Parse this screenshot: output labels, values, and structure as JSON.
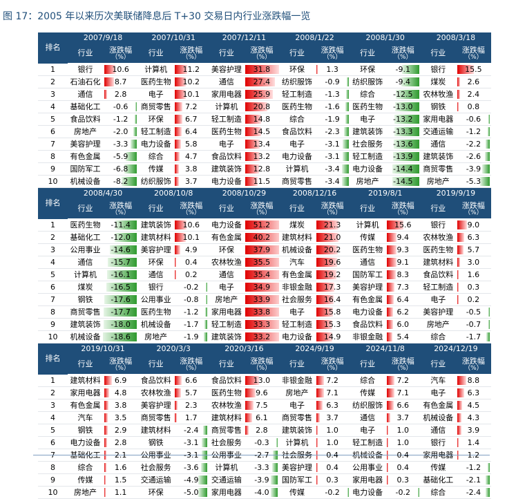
{
  "title": "图 17：2005 年以来历次美联储降息后 T+30 交易日内行业涨跌幅一览",
  "headers": {
    "rank": "排名",
    "industry": "行业",
    "change_top": "涨跌幅",
    "change_bottom": "（%）"
  },
  "colors": {
    "header_bg": "#1f4e79",
    "positive_bar": "#e00000",
    "negative_bar": "#2f9a2f"
  },
  "blocks": [
    {
      "dates": [
        "2007/9/18",
        "2007/10/31",
        "2007/12/11",
        "2008/1/22",
        "2008/1/30",
        "2008/3/18"
      ],
      "rows": [
        {
          "rank": "1",
          "cells": [
            [
              "银行",
              "10.6"
            ],
            [
              "计算机",
              "11.2"
            ],
            [
              "美容护理",
              "31.8"
            ],
            [
              "环保",
              "1.3"
            ],
            [
              "环保",
              "-9.1"
            ],
            [
              "银行",
              "15.5"
            ]
          ]
        },
        {
          "rank": "2",
          "cells": [
            [
              "石油石化",
              "8.7"
            ],
            [
              "医药生物",
              "10.2"
            ],
            [
              "通信",
              "27.4"
            ],
            [
              "纺织服饰",
              "-0.9"
            ],
            [
              "纺织服饰",
              "-9.4"
            ],
            [
              "煤炭",
              "2.6"
            ]
          ]
        },
        {
          "rank": "3",
          "cells": [
            [
              "通信",
              "2.8"
            ],
            [
              "电子",
              "10.1"
            ],
            [
              "家用电器",
              "25.9"
            ],
            [
              "轻工制造",
              "-1.3"
            ],
            [
              "综合",
              "-12.5"
            ],
            [
              "农林牧渔",
              "2.4"
            ]
          ]
        },
        {
          "rank": "4",
          "cells": [
            [
              "基础化工",
              "-0.6"
            ],
            [
              "商贸零售",
              "7.2"
            ],
            [
              "计算机",
              "20.8"
            ],
            [
              "医药生物",
              "-1.6"
            ],
            [
              "医药生物",
              "-13.0"
            ],
            [
              "钢铁",
              "0.8"
            ]
          ]
        },
        {
          "rank": "5",
          "cells": [
            [
              "食品饮料",
              "-1.2"
            ],
            [
              "环保",
              "6.7"
            ],
            [
              "轻工制造",
              "14.8"
            ],
            [
              "综合",
              "-1.9"
            ],
            [
              "电子",
              "-13.2"
            ],
            [
              "家用电器",
              "-0.6"
            ]
          ]
        },
        {
          "rank": "6",
          "cells": [
            [
              "房地产",
              "-2.0"
            ],
            [
              "轻工制造",
              "6.4"
            ],
            [
              "医药生物",
              "14.5"
            ],
            [
              "食品饮料",
              "-2.3"
            ],
            [
              "建筑装饰",
              "-13.3"
            ],
            [
              "交通运输",
              "-1.2"
            ]
          ]
        },
        {
          "rank": "7",
          "cells": [
            [
              "美容护理",
              "-3.3"
            ],
            [
              "电力设备",
              "5.8"
            ],
            [
              "电子",
              "13.4"
            ],
            [
              "电子",
              "-3.1"
            ],
            [
              "社会服务",
              "-13.6"
            ],
            [
              "通信",
              "-2.2"
            ]
          ]
        },
        {
          "rank": "8",
          "cells": [
            [
              "有色金属",
              "-5.9"
            ],
            [
              "综合",
              "4.7"
            ],
            [
              "食品饮料",
              "13.2"
            ],
            [
              "电力设备",
              "-3.1"
            ],
            [
              "轻工制造",
              "-13.9"
            ],
            [
              "建筑装饰",
              "-2.6"
            ]
          ]
        },
        {
          "rank": "9",
          "cells": [
            [
              "国防军工",
              "-6.8"
            ],
            [
              "传媒",
              "3.8"
            ],
            [
              "建筑装饰",
              "12.8"
            ],
            [
              "计算机",
              "-3.4"
            ],
            [
              "电力设备",
              "-14.4"
            ],
            [
              "商贸零售",
              "-3.9"
            ]
          ]
        },
        {
          "rank": "10",
          "cells": [
            [
              "机械设备",
              "-8.2"
            ],
            [
              "纺织服饰",
              "3.7"
            ],
            [
              "电力设备",
              "11.5"
            ],
            [
              "商贸零售",
              "-3.4"
            ],
            [
              "房地产",
              "-14.5"
            ],
            [
              "房地产",
              "-5.3"
            ]
          ]
        }
      ]
    },
    {
      "dates": [
        "2008/4/30",
        "2008/10/8",
        "2008/10/29",
        "2008/12/16",
        "2019/8/1",
        "2019/9/19"
      ],
      "rows": [
        {
          "rank": "1",
          "cells": [
            [
              "医药生物",
              "-11.4"
            ],
            [
              "建筑装饰",
              "10.6"
            ],
            [
              "电力设备",
              "51.2"
            ],
            [
              "煤炭",
              "21.3"
            ],
            [
              "计算机",
              "15.6"
            ],
            [
              "银行",
              "9.0"
            ]
          ]
        },
        {
          "rank": "2",
          "cells": [
            [
              "基础化工",
              "-12.0"
            ],
            [
              "建筑材料",
              "10.1"
            ],
            [
              "有色金属",
              "40.2"
            ],
            [
              "建筑材料",
              "21.0"
            ],
            [
              "传媒",
              "9.4"
            ],
            [
              "农林牧渔",
              "6.3"
            ]
          ]
        },
        {
          "rank": "3",
          "cells": [
            [
              "公用事业",
              "-14.6"
            ],
            [
              "美容护理",
              "4.9"
            ],
            [
              "环保",
              "37.9"
            ],
            [
              "机械设备",
              "20.2"
            ],
            [
              "医药生物",
              "9.3"
            ],
            [
              "医药生物",
              "5.7"
            ]
          ]
        },
        {
          "rank": "4",
          "cells": [
            [
              "通信",
              "-15.7"
            ],
            [
              "环保",
              "0.4"
            ],
            [
              "农林牧渔",
              "35.5"
            ],
            [
              "汽车",
              "19.6"
            ],
            [
              "通信",
              "9.1"
            ],
            [
              "建筑材料",
              "3.0"
            ]
          ]
        },
        {
          "rank": "5",
          "cells": [
            [
              "计算机",
              "-16.1"
            ],
            [
              "通信",
              "0.2"
            ],
            [
              "通信",
              "35.4"
            ],
            [
              "有色金属",
              "19.2"
            ],
            [
              "国防军工",
              "8.3"
            ],
            [
              "食品饮料",
              "1.6"
            ]
          ]
        },
        {
          "rank": "6",
          "cells": [
            [
              "煤炭",
              "-16.5"
            ],
            [
              "银行",
              "-0.2"
            ],
            [
              "电子",
              "34.9"
            ],
            [
              "非银金融",
              "17.3"
            ],
            [
              "美容护理",
              "7.3"
            ],
            [
              "轻工制造",
              "0.3"
            ]
          ]
        },
        {
          "rank": "7",
          "cells": [
            [
              "钢铁",
              "-17.6"
            ],
            [
              "公用事业",
              "-0.8"
            ],
            [
              "房地产",
              "33.9"
            ],
            [
              "社会服务",
              "16.4"
            ],
            [
              "有色金属",
              "6.4"
            ],
            [
              "电子",
              "0.2"
            ]
          ]
        },
        {
          "rank": "8",
          "cells": [
            [
              "商贸零售",
              "-17.7"
            ],
            [
              "医药生物",
              "-1.2"
            ],
            [
              "家用电器",
              "33.8"
            ],
            [
              "电子",
              "15.8"
            ],
            [
              "电力设备",
              "6.2"
            ],
            [
              "美容护理",
              "-0.5"
            ]
          ]
        },
        {
          "rank": "9",
          "cells": [
            [
              "建筑装饰",
              "-18.0"
            ],
            [
              "机械设备",
              "-1.7"
            ],
            [
              "轻工制造",
              "33.3"
            ],
            [
              "轻工制造",
              "15.3"
            ],
            [
              "食品饮料",
              "6.0"
            ],
            [
              "房地产",
              "-0.7"
            ]
          ]
        },
        {
          "rank": "10",
          "cells": [
            [
              "机械设备",
              "-18.6"
            ],
            [
              "房地产",
              "-1.9"
            ],
            [
              "建筑装饰",
              "33.2"
            ],
            [
              "电力设备",
              "14.9"
            ],
            [
              "非银金融",
              "5.4"
            ],
            [
              "综合",
              "-1.7"
            ]
          ]
        }
      ]
    },
    {
      "dates": [
        "2019/10/31",
        "2020/3/3",
        "2020/3/16",
        "2024/9/19",
        "2024/11/8",
        "2024/12/19"
      ],
      "rows": [
        {
          "rank": "1",
          "cells": [
            [
              "建筑材料",
              "6.9"
            ],
            [
              "食品饮料",
              "6.6"
            ],
            [
              "食品饮料",
              "13.0"
            ],
            [
              "非银金融",
              "7.2"
            ],
            [
              "综合",
              "7.2"
            ],
            [
              "汽车",
              "8.8"
            ]
          ]
        },
        {
          "rank": "2",
          "cells": [
            [
              "家用电器",
              "4.8"
            ],
            [
              "农林牧渔",
              "5.7"
            ],
            [
              "医药生物",
              "9.6"
            ],
            [
              "房地产",
              "7.1"
            ],
            [
              "传媒",
              "7.1"
            ],
            [
              "电子",
              "6.3"
            ]
          ]
        },
        {
          "rank": "3",
          "cells": [
            [
              "有色金属",
              "3.8"
            ],
            [
              "美容护理",
              "2.3"
            ],
            [
              "农林牧渔",
              "7.5"
            ],
            [
              "电子",
              "6.3"
            ],
            [
              "纺织服饰",
              "6.6"
            ],
            [
              "有色金属",
              "4.5"
            ]
          ]
        },
        {
          "rank": "4",
          "cells": [
            [
              "汽车",
              "3.5"
            ],
            [
              "商贸零售",
              "1.7"
            ],
            [
              "建筑材料",
              "6.1"
            ],
            [
              "商贸零售",
              "3.7"
            ],
            [
              "通信",
              "3.7"
            ],
            [
              "机械设备",
              "4.3"
            ]
          ]
        },
        {
          "rank": "5",
          "cells": [
            [
              "钢铁",
              "2.9"
            ],
            [
              "建筑材料",
              "-2.4"
            ],
            [
              "商贸零售",
              "2.8"
            ],
            [
              "建筑装饰",
              "1.0"
            ],
            [
              "电子",
              "1.0"
            ],
            [
              "通信",
              "3.9"
            ]
          ]
        },
        {
          "rank": "6",
          "cells": [
            [
              "电力设备",
              "2.8"
            ],
            [
              "钢铁",
              "-3.1"
            ],
            [
              "社会服务",
              "-0.3"
            ],
            [
              "计算机",
              "1.0"
            ],
            [
              "轻工制造",
              "1.0"
            ],
            [
              "银行",
              "1.4"
            ]
          ]
        },
        {
          "rank": "7",
          "cells": [
            [
              "基础化工",
              "2.1"
            ],
            [
              "公用事业",
              "-3.1"
            ],
            [
              "公用事业",
              "-2.7"
            ],
            [
              "社会服务",
              "0.4"
            ],
            [
              "机械设备",
              "0.4"
            ],
            [
              "家用电器",
              "1.2"
            ]
          ]
        },
        {
          "rank": "8",
          "cells": [
            [
              "综合",
              "1.6"
            ],
            [
              "社会服务",
              "-3.6"
            ],
            [
              "计算机",
              "-3.3"
            ],
            [
              "美容护理",
              "0.4"
            ],
            [
              "公用事业",
              "0.4"
            ],
            [
              "传媒",
              "-1.2"
            ]
          ]
        },
        {
          "rank": "9",
          "cells": [
            [
              "传媒",
              "1.5"
            ],
            [
              "交通运输",
              "-4.9"
            ],
            [
              "交通运输",
              "-3.9"
            ],
            [
              "国防军工",
              "0.3"
            ],
            [
              "家用电器",
              "0.3"
            ],
            [
              "基础化工",
              "-2.1"
            ]
          ]
        },
        {
          "rank": "10",
          "cells": [
            [
              "房地产",
              "1.1"
            ],
            [
              "环保",
              "-5.0"
            ],
            [
              "家用电器",
              "-4.0"
            ],
            [
              "传媒",
              "-0.2"
            ],
            [
              "电力设备",
              "-0.2"
            ],
            [
              "综合",
              "-2.4"
            ]
          ]
        }
      ]
    }
  ]
}
